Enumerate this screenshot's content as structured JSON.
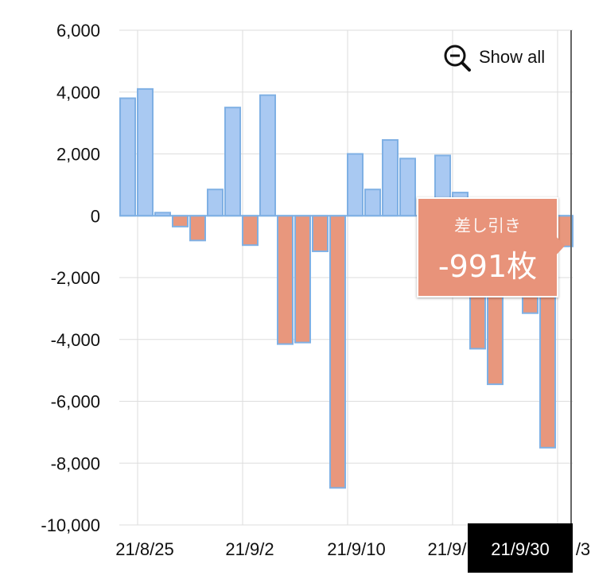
{
  "chart_data": {
    "type": "bar",
    "y_ticks": [
      "6,000",
      "4,000",
      "2,000",
      "0",
      "-2,000",
      "-4,000",
      "-6,000",
      "-8,000",
      "-10,000"
    ],
    "ylim": [
      -10000,
      6000
    ],
    "x_ticks": [
      "21/8/25",
      "21/9/2",
      "21/9/10",
      "21/9/",
      "/3"
    ],
    "values": [
      3800,
      4100,
      100,
      -350,
      -800,
      850,
      3500,
      -950,
      3900,
      -4150,
      -4100,
      -1150,
      -8800,
      2000,
      850,
      2450,
      1850,
      0,
      1950,
      750,
      -4300,
      -5450,
      0,
      -3150,
      -7500,
      -991
    ],
    "colors": {
      "positive": "#a9c9f2",
      "negative": "#e8977d",
      "outline": "#7fb0e4",
      "grid": "#dddddd"
    },
    "grid": true
  },
  "toolbar": {
    "show_all_label": "Show all",
    "zoom_icon": "zoom-out-icon"
  },
  "tooltip": {
    "label": "差し引き",
    "value": "-991枚"
  },
  "crosshair": {
    "x_label": "21/9/30"
  }
}
